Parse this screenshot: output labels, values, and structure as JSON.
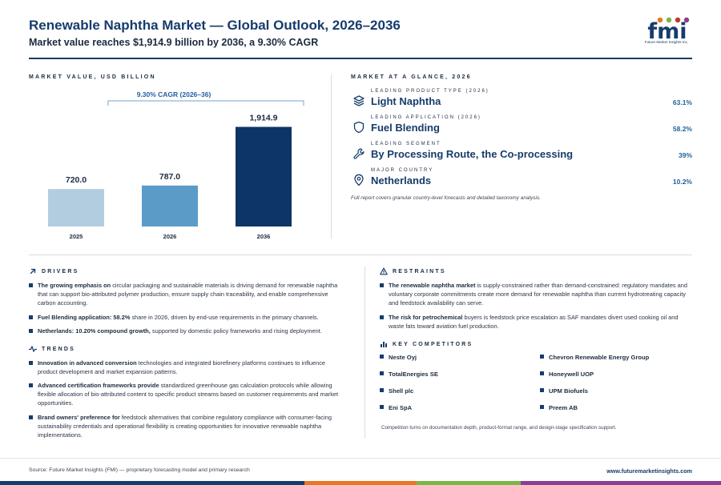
{
  "header": {
    "title": "Renewable Naphtha Market — Global Outlook, 2026–2036",
    "subtitle": "Market value reaches $1,914.9 billion by 2036, a 9.30% CAGR",
    "logo_text": "fmi",
    "logo_tagline": "Future Market Insights Inc."
  },
  "chart_section": {
    "label": "MARKET VALUE, USD BILLION",
    "cagr_label": "9.30% CAGR (2026–36)"
  },
  "chart_data": {
    "type": "bar",
    "categories": [
      "2025",
      "2026",
      "2036"
    ],
    "values": [
      720.0,
      787.0,
      1914.9
    ],
    "value_labels": [
      "720.0",
      "787.0",
      "1,914.9"
    ],
    "title": "MARKET VALUE, USD BILLION",
    "ylim": [
      0,
      2000
    ],
    "grid": false,
    "legend": "none",
    "colors": [
      "#b3cde0",
      "#5b9bc8",
      "#0d3566"
    ],
    "annotation": "9.30% CAGR (2026–36)"
  },
  "glance": {
    "label": "MARKET AT A GLANCE, 2026",
    "items": [
      {
        "caption": "LEADING PRODUCT TYPE (2026)",
        "value": "Light Naphtha",
        "pct": "63.1%",
        "icon": "layers-icon"
      },
      {
        "caption": "LEADING APPLICATION (2026)",
        "value": "Fuel Blending",
        "pct": "58.2%",
        "icon": "shield-icon"
      },
      {
        "caption": "LEADING SEGMENT",
        "value": "By Processing Route, the Co-processing",
        "pct": "39%",
        "icon": "wrench-icon"
      },
      {
        "caption": "MAJOR COUNTRY",
        "value": "Netherlands",
        "pct": "10.2%",
        "icon": "map-pin-icon"
      }
    ],
    "note": "Full report covers granular country-level forecasts and detailed taxonomy analysis."
  },
  "drivers": {
    "label": "DRIVERS",
    "items": [
      {
        "bold": "The growing emphasis on",
        "text": " circular packaging and sustainable materials is driving demand for renewable naphtha that can support bio-attributed polymer production, ensure supply chain traceability, and enable comprehensive carbon accounting."
      },
      {
        "bold": "Fuel Blending application: 58.2%",
        "text": " share in 2026, driven by end-use requirements in the primary channels."
      },
      {
        "bold": "Netherlands: 10.20% compound growth,",
        "text": " supported by domestic policy frameworks and rising deployment."
      }
    ]
  },
  "trends": {
    "label": "TRENDS",
    "items": [
      {
        "bold": "Innovation in advanced conversion",
        "text": " technologies and integrated biorefinery platforms continues to influence product development and market expansion patterns."
      },
      {
        "bold": "Advanced certification frameworks provide",
        "text": " standardized greenhouse gas calculation protocols while allowing flexible allocation of bio-attributed content to specific product streams based on customer requirements and market opportunities."
      },
      {
        "bold": "Brand owners' preference for",
        "text": " feedstock alternatives that combine regulatory compliance with consumer-facing sustainability credentials and operational flexibility is creating opportunities for innovative renewable naphtha implementations."
      }
    ]
  },
  "restraints": {
    "label": "RESTRAINTS",
    "items": [
      {
        "bold": "The renewable naphtha market",
        "text": " is supply-constrained rather than demand-constrained: regulatory mandates and voluntary corporate commitments create more demand for renewable naphtha than current hydrotreating capacity and feedstock availability can serve."
      },
      {
        "bold": "The risk for petrochemical",
        "text": " buyers is feedstock price escalation as SAF mandates divert used cooking oil and waste fats toward aviation fuel production."
      }
    ]
  },
  "competitors": {
    "label": "KEY COMPETITORS",
    "items": [
      "Neste Oyj",
      "Chevron Renewable Energy Group",
      "TotalEnergies SE",
      "Honeywell UOP",
      "Shell plc",
      "UPM Biofuels",
      "Eni SpA",
      "Preem AB"
    ],
    "note": "Competition turns on documentation depth, product-format range, and design-stage specification support."
  },
  "footer": {
    "source": "Source: Future Market Insights (FMI) — proprietary forecasting model and primary research",
    "website": "www.futuremarketinsights.com"
  },
  "colors": {
    "navy": "#173c6b",
    "accent_blue": "#1f5f9e",
    "stripe": [
      "#173c6b",
      "#e87722",
      "#7ab648",
      "#8a3f8f"
    ]
  }
}
